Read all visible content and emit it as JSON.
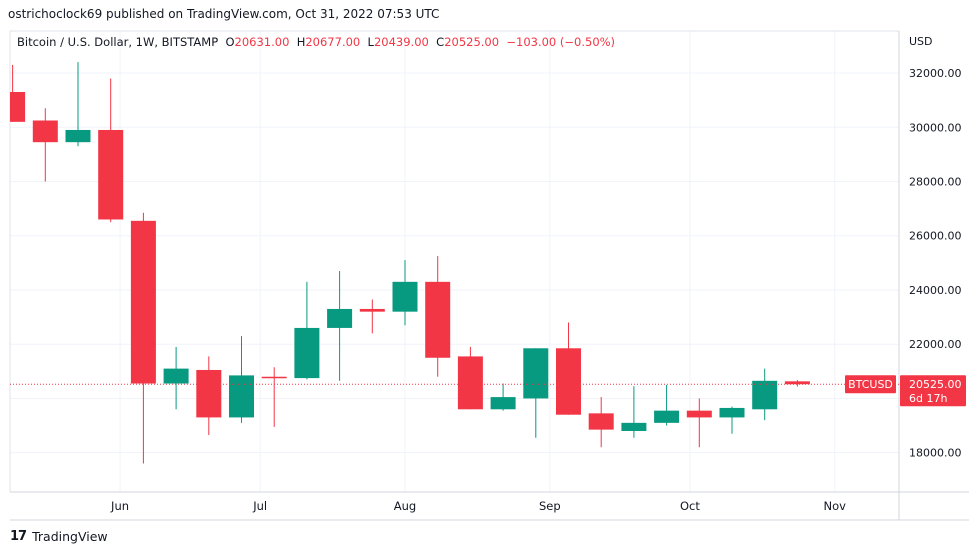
{
  "header": {
    "publisher": "ostrichoclock69 published on TradingView.com, Oct 31, 2022 07:53 UTC"
  },
  "legend": {
    "symbol": "Bitcoin / U.S. Dollar, 1W, BITSTAMP",
    "o_label": "O",
    "o_value": "20631.00",
    "h_label": "H",
    "h_value": "20677.00",
    "l_label": "L",
    "l_value": "20439.00",
    "c_label": "C",
    "c_value": "20525.00",
    "change": "−103.00 (−0.50%)"
  },
  "price_axis": {
    "currency": "USD",
    "ticks": [
      "32000.00",
      "30000.00",
      "28000.00",
      "26000.00",
      "24000.00",
      "22000.00",
      "18000.00"
    ]
  },
  "last_price_tag": {
    "symbol": "BTCUSD",
    "price": "20525.00",
    "countdown": "6d 17h"
  },
  "branding": {
    "logo_mark": "17",
    "name": "TradingView"
  },
  "colors": {
    "up": "#26a69a",
    "down": "#ef5350",
    "up_body": "#089981",
    "down_body": "#f23645",
    "grid": "#f0f3fa",
    "text": "#131722"
  },
  "chart_data": {
    "type": "candlestick",
    "title": "Bitcoin / U.S. Dollar, 1W, BITSTAMP",
    "ylabel": "USD",
    "ylim": [
      16550,
      33550
    ],
    "x_labels": [
      "Jun",
      "Jul",
      "Aug",
      "Sep",
      "Oct",
      "Nov"
    ],
    "grid": true,
    "last_price": 20525,
    "candles": [
      {
        "week": "2022-05-09",
        "o": 31300,
        "h": 32300,
        "l": 30200,
        "c": 30200
      },
      {
        "week": "2022-05-16",
        "o": 30250,
        "h": 30700,
        "l": 28000,
        "c": 29450
      },
      {
        "week": "2022-05-23",
        "o": 29450,
        "h": 32400,
        "l": 29300,
        "c": 29900
      },
      {
        "week": "2022-05-30",
        "o": 29900,
        "h": 31800,
        "l": 26500,
        "c": 26600
      },
      {
        "week": "2022-06-06",
        "o": 26550,
        "h": 26850,
        "l": 17600,
        "c": 20550
      },
      {
        "week": "2022-06-13",
        "o": 20550,
        "h": 21900,
        "l": 19600,
        "c": 21100
      },
      {
        "week": "2022-06-20",
        "o": 21050,
        "h": 21550,
        "l": 18650,
        "c": 19300
      },
      {
        "week": "2022-06-27",
        "o": 19300,
        "h": 22300,
        "l": 19100,
        "c": 20850
      },
      {
        "week": "2022-07-04",
        "o": 20800,
        "h": 21150,
        "l": 18950,
        "c": 20750
      },
      {
        "week": "2022-07-11",
        "o": 20750,
        "h": 24300,
        "l": 20700,
        "c": 22600
      },
      {
        "week": "2022-07-18",
        "o": 22600,
        "h": 24700,
        "l": 20650,
        "c": 23300
      },
      {
        "week": "2022-07-25",
        "o": 23300,
        "h": 23650,
        "l": 22400,
        "c": 23200
      },
      {
        "week": "2022-08-01",
        "o": 23200,
        "h": 25100,
        "l": 22700,
        "c": 24300
      },
      {
        "week": "2022-08-08",
        "o": 24300,
        "h": 25250,
        "l": 20800,
        "c": 21500
      },
      {
        "week": "2022-08-15",
        "o": 21550,
        "h": 21900,
        "l": 19600,
        "c": 19600
      },
      {
        "week": "2022-08-22",
        "o": 19600,
        "h": 20550,
        "l": 19550,
        "c": 20050
      },
      {
        "week": "2022-08-29",
        "o": 20000,
        "h": 21850,
        "l": 18550,
        "c": 21850
      },
      {
        "week": "2022-09-05",
        "o": 21850,
        "h": 22800,
        "l": 19400,
        "c": 19400
      },
      {
        "week": "2022-09-12",
        "o": 19450,
        "h": 20050,
        "l": 18200,
        "c": 18850
      },
      {
        "week": "2022-09-19",
        "o": 18800,
        "h": 20450,
        "l": 18550,
        "c": 19100
      },
      {
        "week": "2022-09-26",
        "o": 19100,
        "h": 20500,
        "l": 19000,
        "c": 19550
      },
      {
        "week": "2022-10-03",
        "o": 19550,
        "h": 20000,
        "l": 18200,
        "c": 19300
      },
      {
        "week": "2022-10-10",
        "o": 19300,
        "h": 19700,
        "l": 18700,
        "c": 19650
      },
      {
        "week": "2022-10-17",
        "o": 19600,
        "h": 21100,
        "l": 19200,
        "c": 20650
      },
      {
        "week": "2022-10-24",
        "o": 20631,
        "h": 20677,
        "l": 20439,
        "c": 20525
      }
    ]
  }
}
